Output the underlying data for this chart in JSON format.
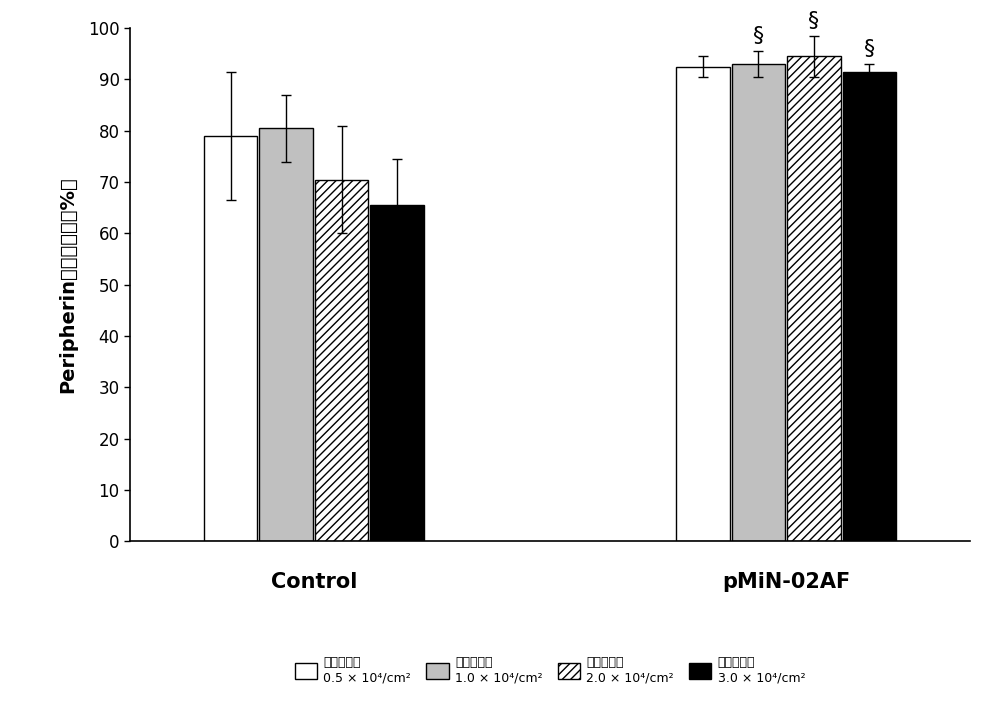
{
  "groups": [
    "Control",
    "pMiN-02AF"
  ],
  "values": {
    "Control": [
      79.0,
      80.5,
      70.5,
      65.5
    ],
    "pMiN-02AF": [
      92.5,
      93.0,
      94.5,
      91.5
    ]
  },
  "errors": {
    "Control": [
      12.5,
      6.5,
      10.5,
      9.0
    ],
    "pMiN-02AF": [
      2.0,
      2.5,
      4.0,
      1.5
    ]
  },
  "significance": {
    "Control": [
      false,
      false,
      false,
      false
    ],
    "pMiN-02AF": [
      false,
      true,
      true,
      true
    ]
  },
  "bar_facecolors": [
    "#ffffff",
    "#c0c0c0",
    "#ffffff",
    "#000000"
  ],
  "bar_hatches": [
    null,
    null,
    "////",
    null
  ],
  "bar_edgecolors": [
    "#000000",
    "#000000",
    "#000000",
    "#000000"
  ],
  "ylabel": "Peripherin阳性百分比（％）",
  "ylim": [
    0,
    100
  ],
  "yticks": [
    0,
    10,
    20,
    30,
    40,
    50,
    60,
    70,
    80,
    90,
    100
  ],
  "group_labels": [
    "Control",
    "pMiN-02AF"
  ],
  "group_label_fontsize": 15,
  "ylabel_fontsize": 14,
  "tick_fontsize": 12,
  "sig_fontsize": 16,
  "legend_labels": [
    "接种密度：\n0.5 × 10⁴/cm²",
    "接种密度：\n1.0 × 10⁴/cm²",
    "接种密度：\n2.0 × 10⁴/cm²",
    "接种密度：\n3.0 × 10⁴/cm²"
  ]
}
